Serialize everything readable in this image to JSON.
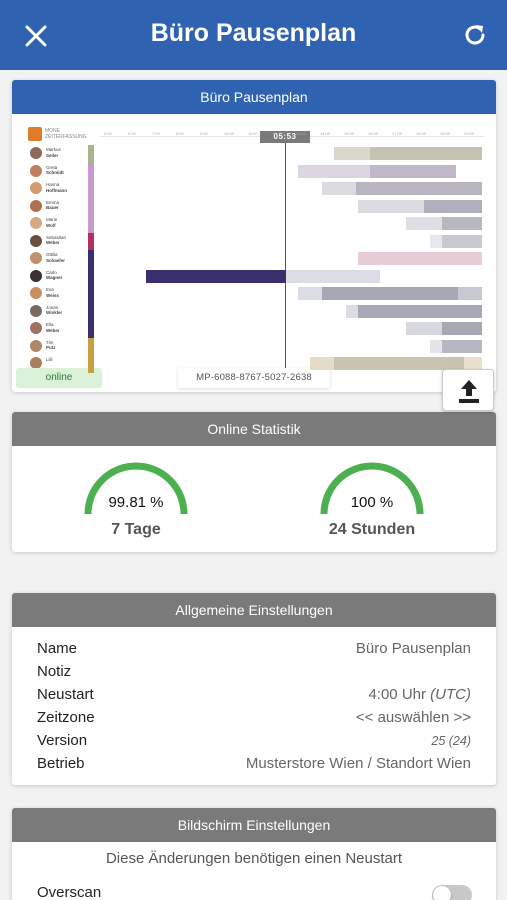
{
  "appbar": {
    "title": "Büro Pausenplan"
  },
  "preview": {
    "header": "Büro Pausenplan",
    "status": "online",
    "device_id": "MP-6088-8767-5027-2638",
    "now_time": "05:53",
    "logo_text": "MONE ZEITERFASSUNG",
    "staff": [
      {
        "first": "Markus",
        "last": "Seiler"
      },
      {
        "first": "Greta",
        "last": "Schmidt"
      },
      {
        "first": "Hanna",
        "last": "Hoffmann"
      },
      {
        "first": "Emma",
        "last": "Bauer"
      },
      {
        "first": "Marie",
        "last": "Wolf"
      },
      {
        "first": "Sebastian",
        "last": "Weber"
      },
      {
        "first": "Ottilia",
        "last": "Schaefer"
      },
      {
        "first": "Carlo",
        "last": "Wagner"
      },
      {
        "first": "Eva",
        "last": "Weiss"
      },
      {
        "first": "Jonas",
        "last": "Winkler"
      },
      {
        "first": "Ella",
        "last": "Weber"
      },
      {
        "first": "Tim",
        "last": "Putz"
      },
      {
        "first": "Lilli",
        "last": ""
      }
    ]
  },
  "stats": {
    "header": "Online Statistik",
    "gauges": [
      {
        "value": "99.81 %",
        "label": "7 Tage",
        "fraction": 0.9981
      },
      {
        "value": "100 %",
        "label": "24 Stunden",
        "fraction": 1.0
      }
    ],
    "color": "#4caf50"
  },
  "settings": {
    "header": "Allgemeine Einstellungen",
    "name_label": "Name",
    "name_value": "Büro Pausenplan",
    "note_label": "Notiz",
    "note_value": "",
    "restart_label": "Neustart",
    "restart_value": "4:00 Uhr",
    "restart_tz": "(UTC)",
    "tz_label": "Zeitzone",
    "tz_value": "<< auswählen >>",
    "version_label": "Version",
    "version_value": "25 (24)",
    "store_label": "Betrieb",
    "store_value": "Musterstore Wien / Standort Wien"
  },
  "display": {
    "header": "Bildschirm Einstellungen",
    "notice": "Diese Änderungen benötigen einen Neustart",
    "overscan_label": "Overscan",
    "overscan_on": false
  },
  "colors": {
    "primary": "#2f63b1",
    "section_header": "#7a7a7a",
    "gauge": "#4caf50"
  }
}
